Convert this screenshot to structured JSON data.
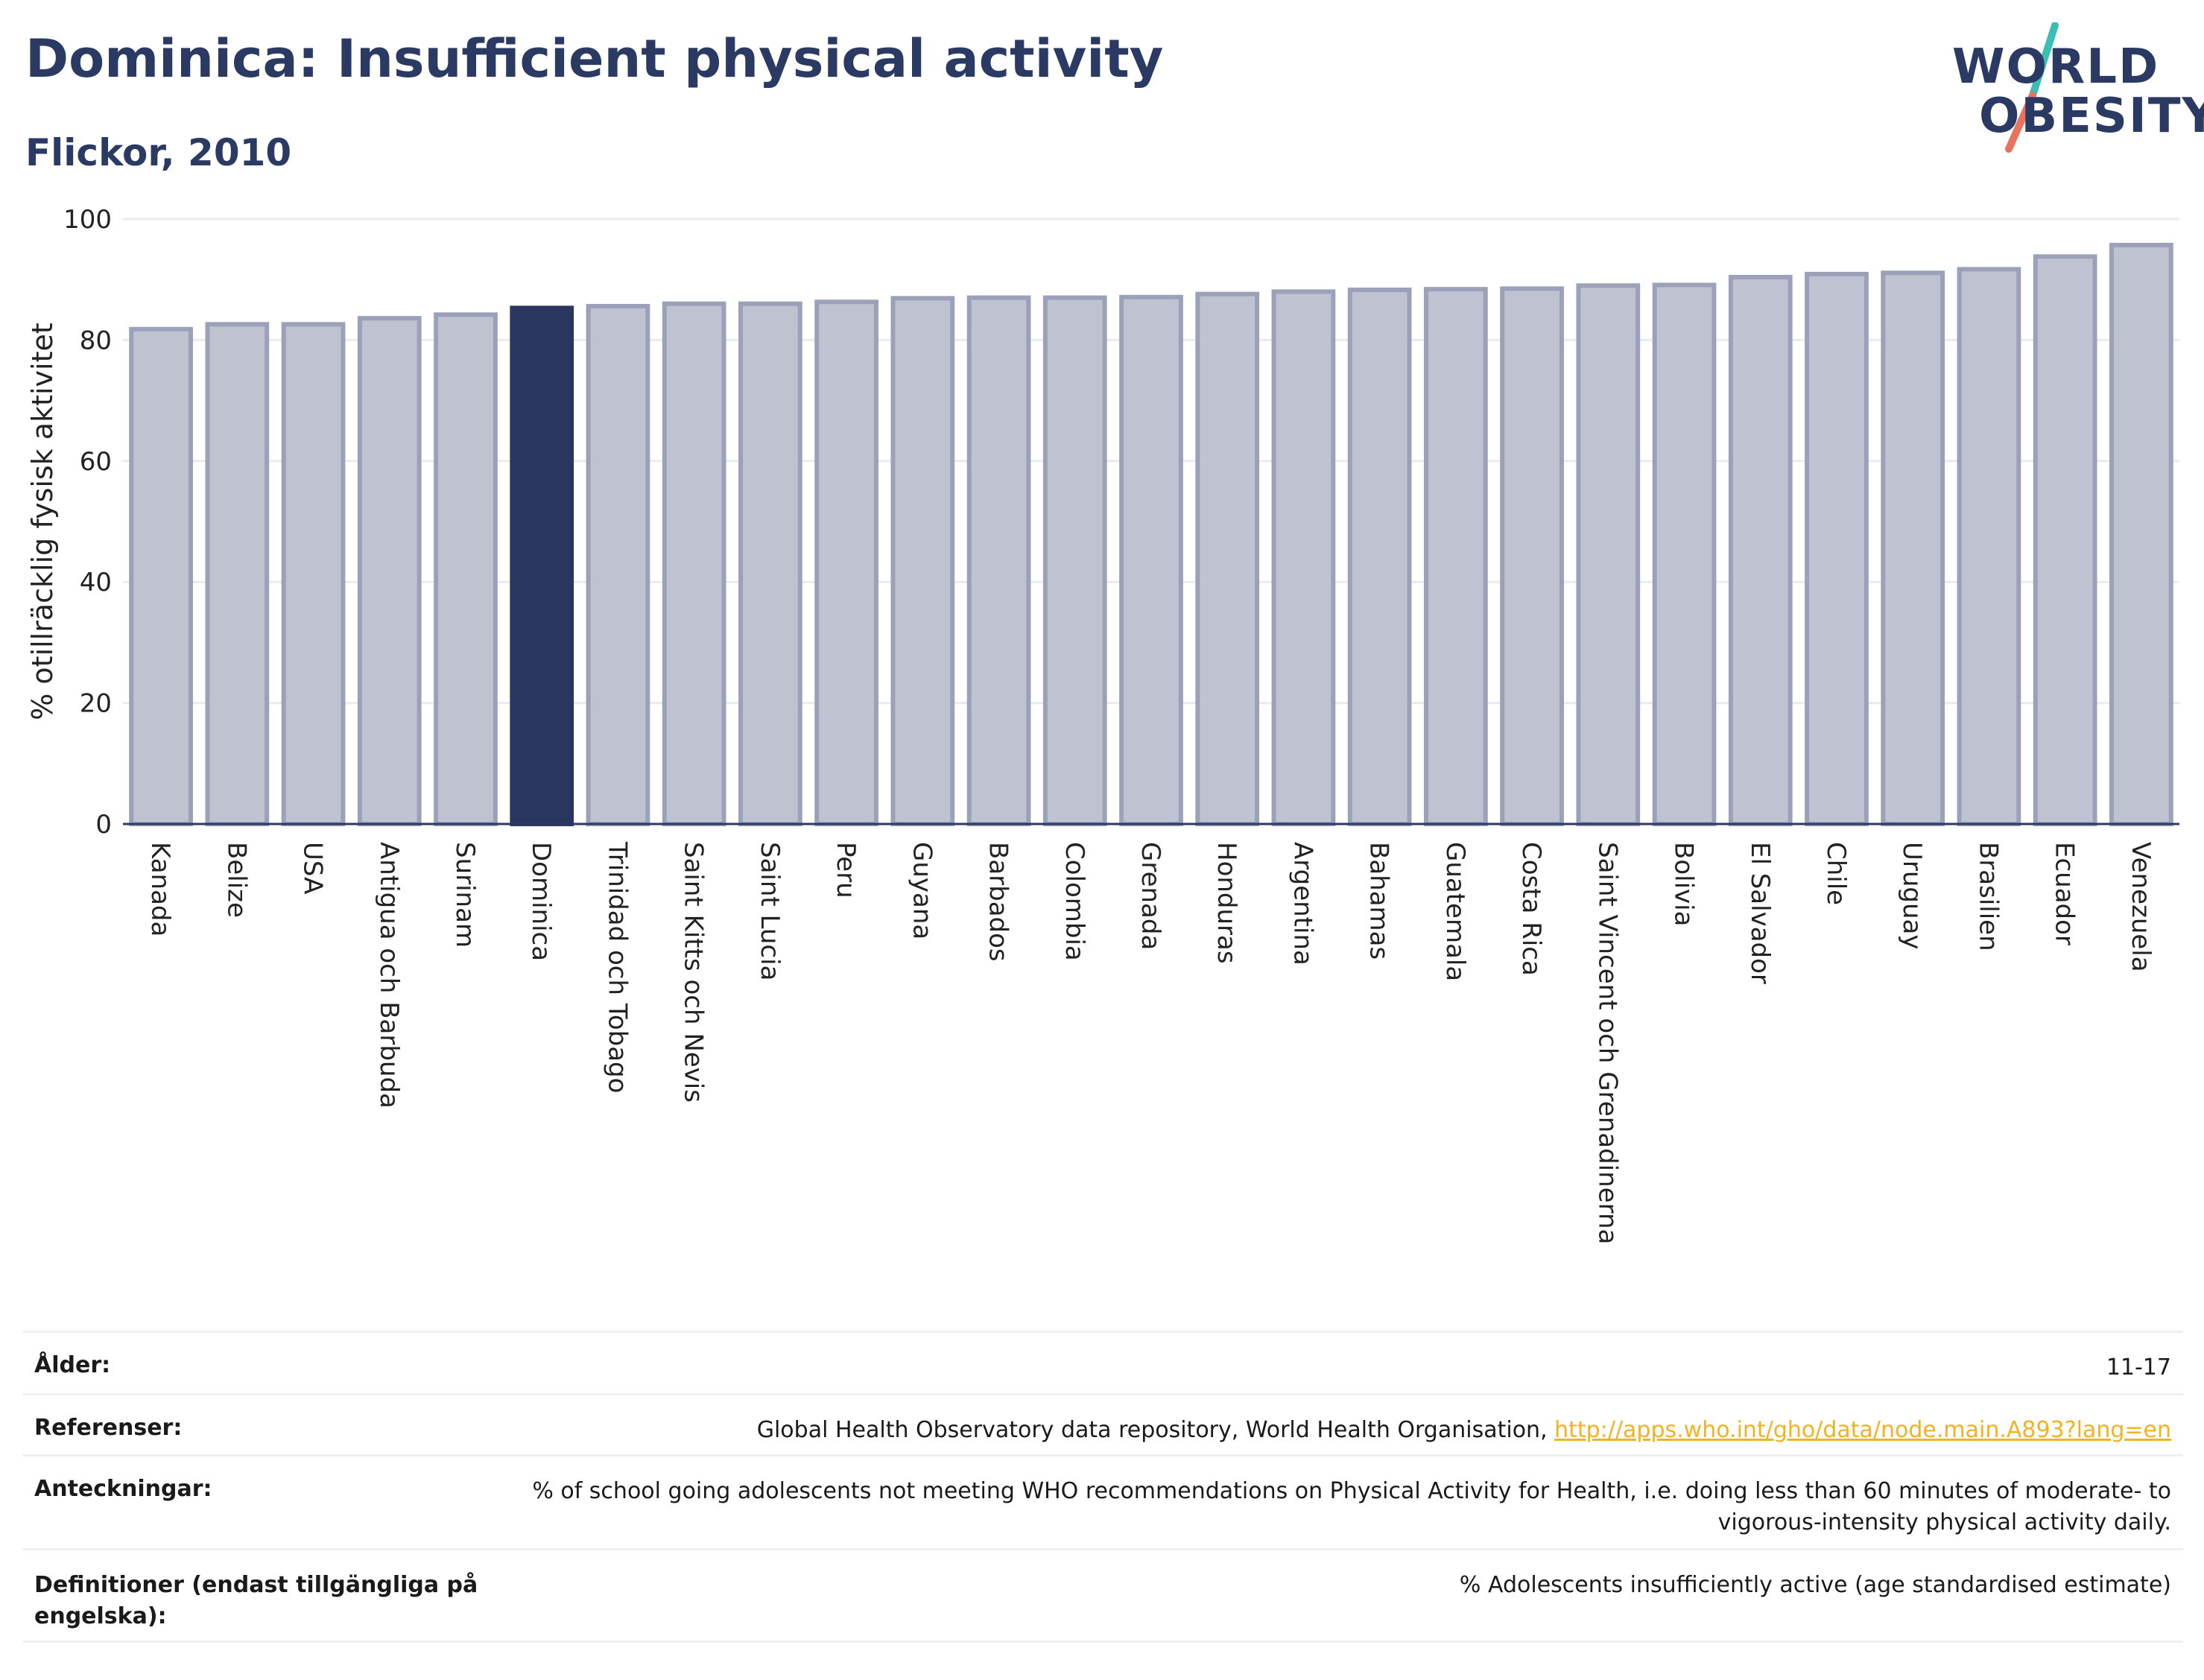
{
  "header": {
    "title": "Dominica: Insufficient physical activity",
    "subtitle": "Flickor, 2010"
  },
  "logo": {
    "line1": "WORLD",
    "line2": "OBESITY",
    "colors": {
      "text": "#2b3a63",
      "slash_top": "#3bbfb4",
      "slash_bottom": "#e8735f"
    }
  },
  "chart_data": {
    "type": "bar",
    "ylabel": "% otillräcklig fysisk aktivitet",
    "ylim": [
      0,
      100
    ],
    "yticks": [
      0,
      20,
      40,
      60,
      80,
      100
    ],
    "grid": true,
    "highlight": "Dominica",
    "colors": {
      "bar": "#bfc3d1",
      "bar_border": "#9aa1b8",
      "highlight": "#2b3660",
      "grid": "#e9ebf0",
      "axis": "#2b3a63"
    },
    "categories": [
      "Kanada",
      "Belize",
      "USA",
      "Antigua och Barbuda",
      "Surinam",
      "Dominica",
      "Trinidad och Tobago",
      "Saint Kitts och Nevis",
      "Saint Lucia",
      "Peru",
      "Guyana",
      "Barbados",
      "Colombia",
      "Grenada",
      "Honduras",
      "Argentina",
      "Bahamas",
      "Guatemala",
      "Costa Rica",
      "Saint Vincent och Grenadinerna",
      "Bolivia",
      "El Salvador",
      "Chile",
      "Uruguay",
      "Brasilien",
      "Ecuador",
      "Venezuela"
    ],
    "values": [
      81.8,
      82.6,
      82.6,
      83.6,
      84.2,
      85.3,
      85.6,
      86.0,
      86.0,
      86.3,
      86.9,
      87.0,
      87.0,
      87.1,
      87.6,
      88.0,
      88.3,
      88.4,
      88.5,
      89.0,
      89.1,
      90.4,
      90.9,
      91.1,
      91.7,
      93.8,
      95.7
    ]
  },
  "meta": {
    "rows": [
      {
        "label": "Ålder:",
        "value": "11-17"
      },
      {
        "label": "Referenser:",
        "value": "Global Health Observatory data repository, World Health Organisation, ",
        "link": "http://apps.who.int/gho/data/node.main.A893?lang=en"
      },
      {
        "label": "Anteckningar:",
        "value": "% of school going adolescents not meeting WHO recommendations on Physical Activity for Health, i.e. doing less than 60 minutes of moderate- to vigorous-intensity physical activity daily."
      },
      {
        "label": "Definitioner (endast tillgängliga på engelska):",
        "value": "% Adolescents insufficiently active (age standardised estimate)"
      }
    ]
  }
}
